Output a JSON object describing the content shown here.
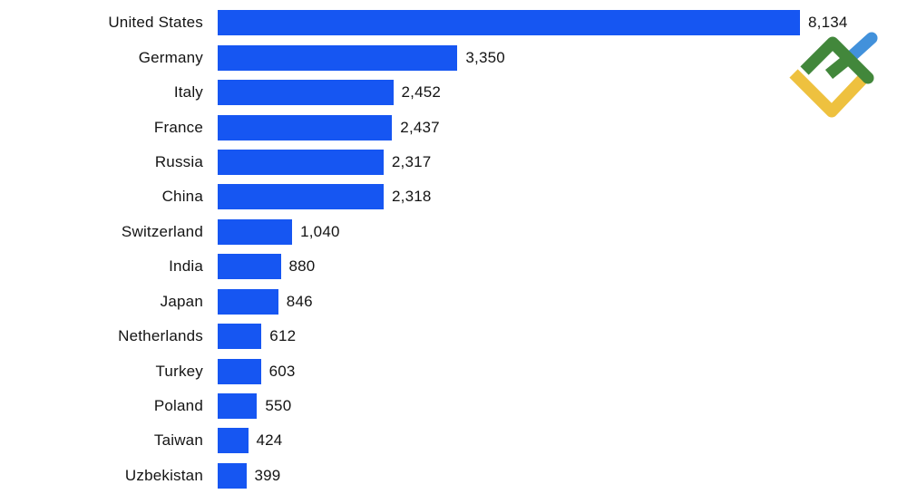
{
  "chart_data": {
    "type": "bar",
    "orientation": "horizontal",
    "title": "",
    "xlabel": "",
    "ylabel": "",
    "grid": false,
    "legend": false,
    "xlim": [
      0,
      8134
    ],
    "bar_color": "#1656F2",
    "text_color": "#141414",
    "categories": [
      "United States",
      "Germany",
      "Italy",
      "France",
      "Russia",
      "China",
      "Switzerland",
      "India",
      "Japan",
      "Netherlands",
      "Turkey",
      "Poland",
      "Taiwan",
      "Uzbekistan"
    ],
    "values": [
      8134,
      3350,
      2452,
      2437,
      2317,
      2318,
      1040,
      880,
      846,
      612,
      603,
      550,
      424,
      399
    ],
    "value_labels": [
      "8,134",
      "3,350",
      "2,452",
      "2,437",
      "2,317",
      "2,318",
      "1,040",
      "880",
      "846",
      "612",
      "603",
      "550",
      "424",
      "399"
    ]
  },
  "branding": {
    "logo": "litefinance-mark",
    "colors": {
      "green": "#42873B",
      "yellow": "#EEC13F",
      "blue": "#4291DB"
    }
  }
}
